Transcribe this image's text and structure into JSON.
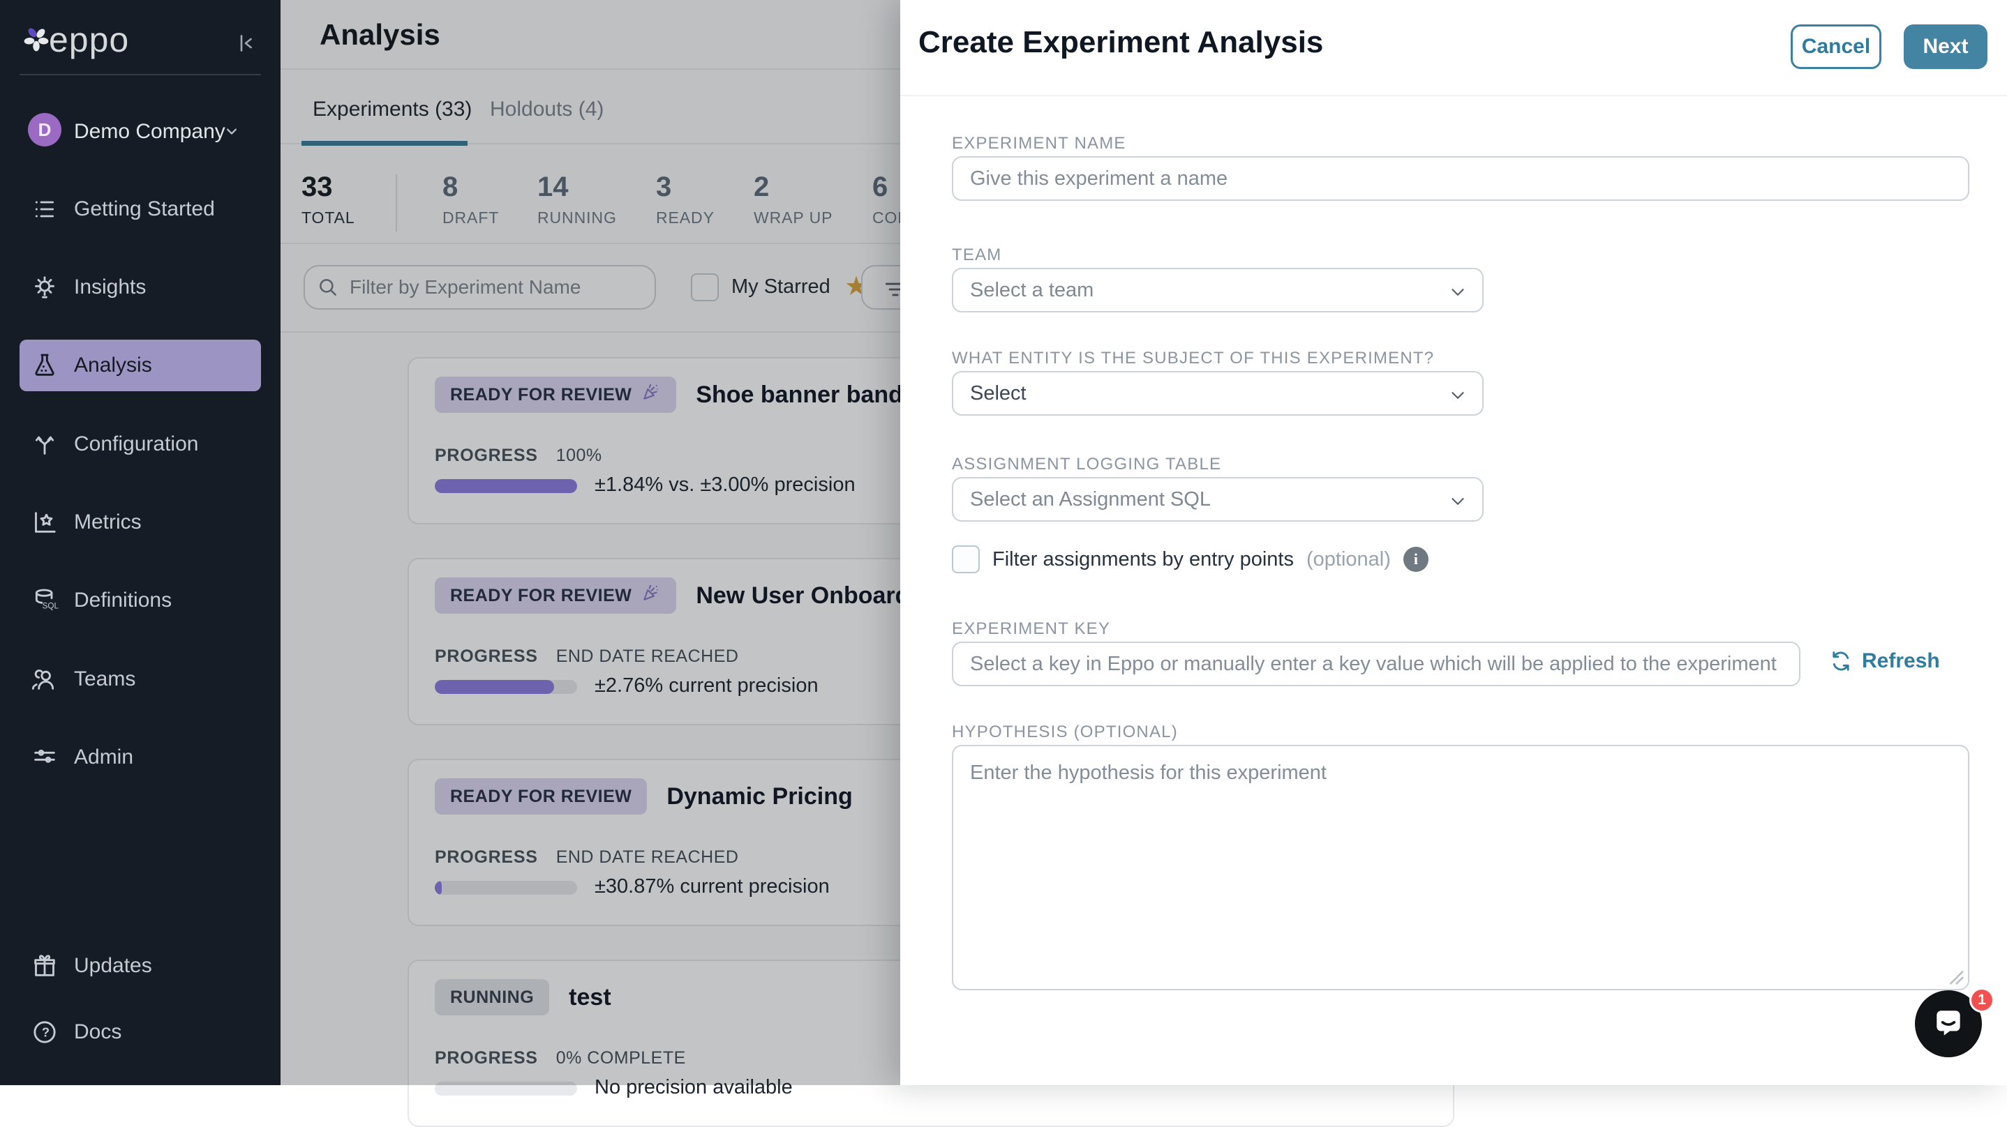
{
  "sidebar": {
    "logo_text": "eppo",
    "workspace": {
      "initial": "D",
      "name": "Demo Company"
    },
    "items": [
      {
        "label": "Getting Started",
        "selected": false
      },
      {
        "label": "Insights",
        "selected": false
      },
      {
        "label": "Analysis",
        "selected": true
      },
      {
        "label": "Configuration",
        "selected": false
      },
      {
        "label": "Metrics",
        "selected": false
      },
      {
        "label": "Definitions",
        "selected": false
      },
      {
        "label": "Teams",
        "selected": false
      },
      {
        "label": "Admin",
        "selected": false
      }
    ],
    "footer_items": [
      {
        "label": "Updates"
      },
      {
        "label": "Docs"
      }
    ]
  },
  "main": {
    "title": "Analysis",
    "tabs": [
      {
        "label": "Experiments (33)",
        "active": true
      },
      {
        "label": "Holdouts (4)",
        "active": false
      }
    ],
    "stats": [
      {
        "value": "33",
        "label": "TOTAL"
      },
      {
        "value": "8",
        "label": "DRAFT"
      },
      {
        "value": "14",
        "label": "RUNNING"
      },
      {
        "value": "3",
        "label": "READY"
      },
      {
        "value": "2",
        "label": "WRAP UP"
      },
      {
        "value": "6",
        "label": "CON"
      }
    ],
    "filter_placeholder": "Filter by Experiment Name",
    "my_starred_label": "My Starred",
    "star_icon": "★",
    "progress_label": "PROGRESS",
    "cards": [
      {
        "badge": "READY FOR REVIEW",
        "celebration": true,
        "title": "Shoe banner bandit ana",
        "status": "100%",
        "pct": 100,
        "precision": "±1.84% vs. ±3.00% precision"
      },
      {
        "badge": "READY FOR REVIEW",
        "celebration": true,
        "title": "New User Onboarding",
        "status": "END DATE REACHED",
        "pct": 84,
        "precision": "±2.76% current precision"
      },
      {
        "badge": "READY FOR REVIEW",
        "celebration": false,
        "title": "Dynamic Pricing",
        "status": "END DATE REACHED",
        "pct": 5,
        "precision": "±30.87% current precision"
      },
      {
        "badge": "RUNNING",
        "celebration": false,
        "title": "test",
        "status": "0% COMPLETE",
        "pct": 0,
        "precision": "No precision available"
      }
    ]
  },
  "modal": {
    "title": "Create Experiment Analysis",
    "cancel_label": "Cancel",
    "next_label": "Next",
    "fields": {
      "name": {
        "label": "EXPERIMENT NAME",
        "placeholder": "Give this experiment a name"
      },
      "team": {
        "label": "TEAM",
        "value": "Select a team"
      },
      "entity": {
        "label": "WHAT ENTITY IS THE SUBJECT OF THIS EXPERIMENT?",
        "value": "Select"
      },
      "assignment": {
        "label": "ASSIGNMENT LOGGING TABLE",
        "value": "Select an Assignment SQL"
      },
      "entry_points": {
        "label": "Filter assignments by entry points",
        "optional": "(optional)"
      },
      "key": {
        "label": "EXPERIMENT KEY",
        "placeholder": "Select a key in Eppo or manually enter a key value which will be applied to the experiment",
        "refresh_label": "Refresh"
      },
      "hypothesis": {
        "label": "HYPOTHESIS (OPTIONAL)",
        "placeholder": "Enter the hypothesis for this experiment"
      }
    }
  },
  "intercom": {
    "badge_count": "1"
  },
  "colors": {
    "sidebar_bg": "#151C26",
    "sidebar_selected": "#9C94C2",
    "accent_teal": "#3E7D97",
    "progress_purple": "#8C7CE0",
    "badge_purple_bg": "#DCD6F1",
    "star_gold": "#D7A43D",
    "notification_red": "#F0504F",
    "avatar_purple": "#9B6BC4"
  }
}
